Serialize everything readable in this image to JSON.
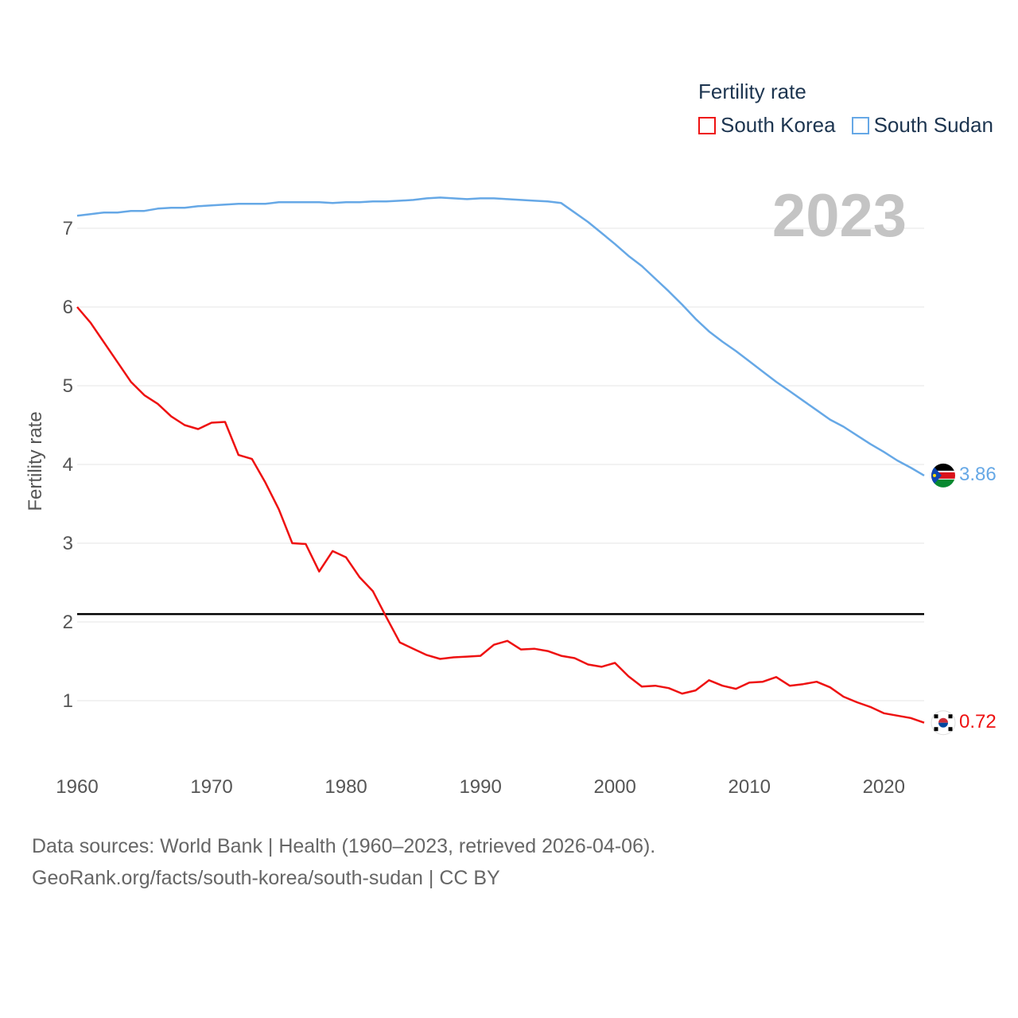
{
  "colors": {
    "south_korea": "#ee1111",
    "south_sudan": "#66a8e6",
    "grid": "#e4e4e4",
    "axis_text": "#555555",
    "reference": "#000000"
  },
  "legend": {
    "title": "Fertility rate"
  },
  "year_label": "2023",
  "footer": {
    "line1": "Data sources: World Bank | Health (1960–2023, retrieved 2026-04-06).",
    "line2": "GeoRank.org/facts/south-korea/south-sudan | CC BY"
  },
  "chart_data": {
    "type": "line",
    "title": "Fertility rate",
    "xlabel": "",
    "ylabel": "Fertility rate",
    "xlim": [
      1960,
      2023
    ],
    "ylim": [
      0,
      7.6
    ],
    "x_ticks": [
      1960,
      1970,
      1980,
      1990,
      2000,
      2010,
      2020
    ],
    "y_ticks": [
      1,
      2,
      3,
      4,
      5,
      6,
      7
    ],
    "reference_line": 2.1,
    "legend_position": "top-right",
    "x": [
      1960,
      1961,
      1962,
      1963,
      1964,
      1965,
      1966,
      1967,
      1968,
      1969,
      1970,
      1971,
      1972,
      1973,
      1974,
      1975,
      1976,
      1977,
      1978,
      1979,
      1980,
      1981,
      1982,
      1983,
      1984,
      1985,
      1986,
      1987,
      1988,
      1989,
      1990,
      1991,
      1992,
      1993,
      1994,
      1995,
      1996,
      1997,
      1998,
      1999,
      2000,
      2001,
      2002,
      2003,
      2004,
      2005,
      2006,
      2007,
      2008,
      2009,
      2010,
      2011,
      2012,
      2013,
      2014,
      2015,
      2016,
      2017,
      2018,
      2019,
      2020,
      2021,
      2022,
      2023
    ],
    "series": [
      {
        "name": "South Korea",
        "color": "#ee1111",
        "end_label": "0.72",
        "values": [
          6.0,
          5.8,
          5.55,
          5.3,
          5.05,
          4.88,
          4.77,
          4.61,
          4.5,
          4.45,
          4.53,
          4.54,
          4.12,
          4.07,
          3.77,
          3.43,
          3.0,
          2.99,
          2.64,
          2.9,
          2.82,
          2.57,
          2.39,
          2.06,
          1.74,
          1.66,
          1.58,
          1.53,
          1.55,
          1.56,
          1.57,
          1.71,
          1.76,
          1.65,
          1.66,
          1.63,
          1.57,
          1.54,
          1.46,
          1.43,
          1.48,
          1.31,
          1.18,
          1.19,
          1.16,
          1.09,
          1.13,
          1.26,
          1.19,
          1.15,
          1.23,
          1.24,
          1.3,
          1.19,
          1.21,
          1.24,
          1.17,
          1.05,
          0.98,
          0.92,
          0.84,
          0.81,
          0.78,
          0.72
        ]
      },
      {
        "name": "South Sudan",
        "color": "#66a8e6",
        "end_label": "3.86",
        "values": [
          7.16,
          7.18,
          7.2,
          7.2,
          7.22,
          7.22,
          7.25,
          7.26,
          7.26,
          7.28,
          7.29,
          7.3,
          7.31,
          7.31,
          7.31,
          7.33,
          7.33,
          7.33,
          7.33,
          7.32,
          7.33,
          7.33,
          7.34,
          7.34,
          7.35,
          7.36,
          7.38,
          7.39,
          7.38,
          7.37,
          7.38,
          7.38,
          7.37,
          7.36,
          7.35,
          7.34,
          7.32,
          7.2,
          7.08,
          6.94,
          6.8,
          6.65,
          6.52,
          6.36,
          6.2,
          6.03,
          5.85,
          5.69,
          5.56,
          5.44,
          5.31,
          5.18,
          5.05,
          4.93,
          4.81,
          4.69,
          4.57,
          4.48,
          4.37,
          4.26,
          4.16,
          4.05,
          3.96,
          3.86
        ]
      }
    ]
  }
}
